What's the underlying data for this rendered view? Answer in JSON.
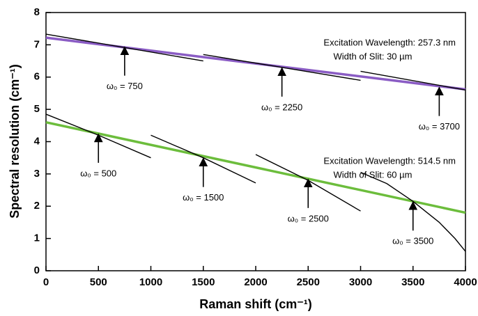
{
  "chart_data": {
    "type": "line",
    "x_label": "Raman shift (cm⁻¹)",
    "y_label": "Spectral resolution (cm⁻¹)",
    "xlim": [
      0,
      4000
    ],
    "xticks": [
      0,
      500,
      1000,
      1500,
      2000,
      2500,
      3000,
      3500,
      4000
    ],
    "ylim": [
      0,
      8
    ],
    "yticks": [
      0,
      1,
      2,
      3,
      4,
      5,
      6,
      7,
      8
    ],
    "series": [
      {
        "color": "#8a5cc4",
        "x": [
          0,
          4000
        ],
        "values": [
          7.22,
          5.62
        ]
      },
      {
        "color": "#6cbd3c",
        "x": [
          0,
          4000
        ],
        "values": [
          4.6,
          1.8
        ]
      },
      {
        "color": "#000000",
        "x": [
          0,
          1500
        ],
        "values": [
          7.33,
          6.5
        ]
      },
      {
        "color": "#000000",
        "x": [
          1500,
          3000
        ],
        "values": [
          6.7,
          5.9
        ]
      },
      {
        "color": "#000000",
        "x": [
          3000,
          4000
        ],
        "values": [
          6.18,
          5.6
        ]
      },
      {
        "color": "#000000",
        "x": [
          0,
          500,
          1000
        ],
        "values": [
          4.85,
          4.2,
          3.5
        ]
      },
      {
        "color": "#000000",
        "x": [
          1000,
          1500,
          2000
        ],
        "values": [
          4.2,
          3.5,
          2.72
        ]
      },
      {
        "color": "#000000",
        "x": [
          2000,
          2500,
          3000
        ],
        "values": [
          3.6,
          2.8,
          1.85
        ]
      },
      {
        "color": "#000000",
        "x": [
          3000,
          3250,
          3500,
          3750,
          3900,
          4000
        ],
        "values": [
          3.05,
          2.7,
          2.15,
          1.5,
          1.0,
          0.6
        ]
      }
    ],
    "notes": [
      "Excitation Wavelength: 257.3 nm",
      "Width of Slit: 30 µm",
      "Excitation Wavelength: 514.5 nm",
      "Width of Slit: 60 µm"
    ],
    "annotations": [
      {
        "text": "ω₀ = 750",
        "x": 750,
        "y": 6.95
      },
      {
        "text": "ω₀ = 2250",
        "x": 2250,
        "y": 6.3
      },
      {
        "text": "ω₀ = 3700",
        "x": 3750,
        "y": 5.7
      },
      {
        "text": "ω₀ = 500",
        "x": 500,
        "y": 4.25
      },
      {
        "text": "ω₀ = 1500",
        "x": 1500,
        "y": 3.5
      },
      {
        "text": "ω₀ = 2500",
        "x": 2500,
        "y": 2.85
      },
      {
        "text": "ω₀ = 3500",
        "x": 3500,
        "y": 2.15
      }
    ]
  }
}
